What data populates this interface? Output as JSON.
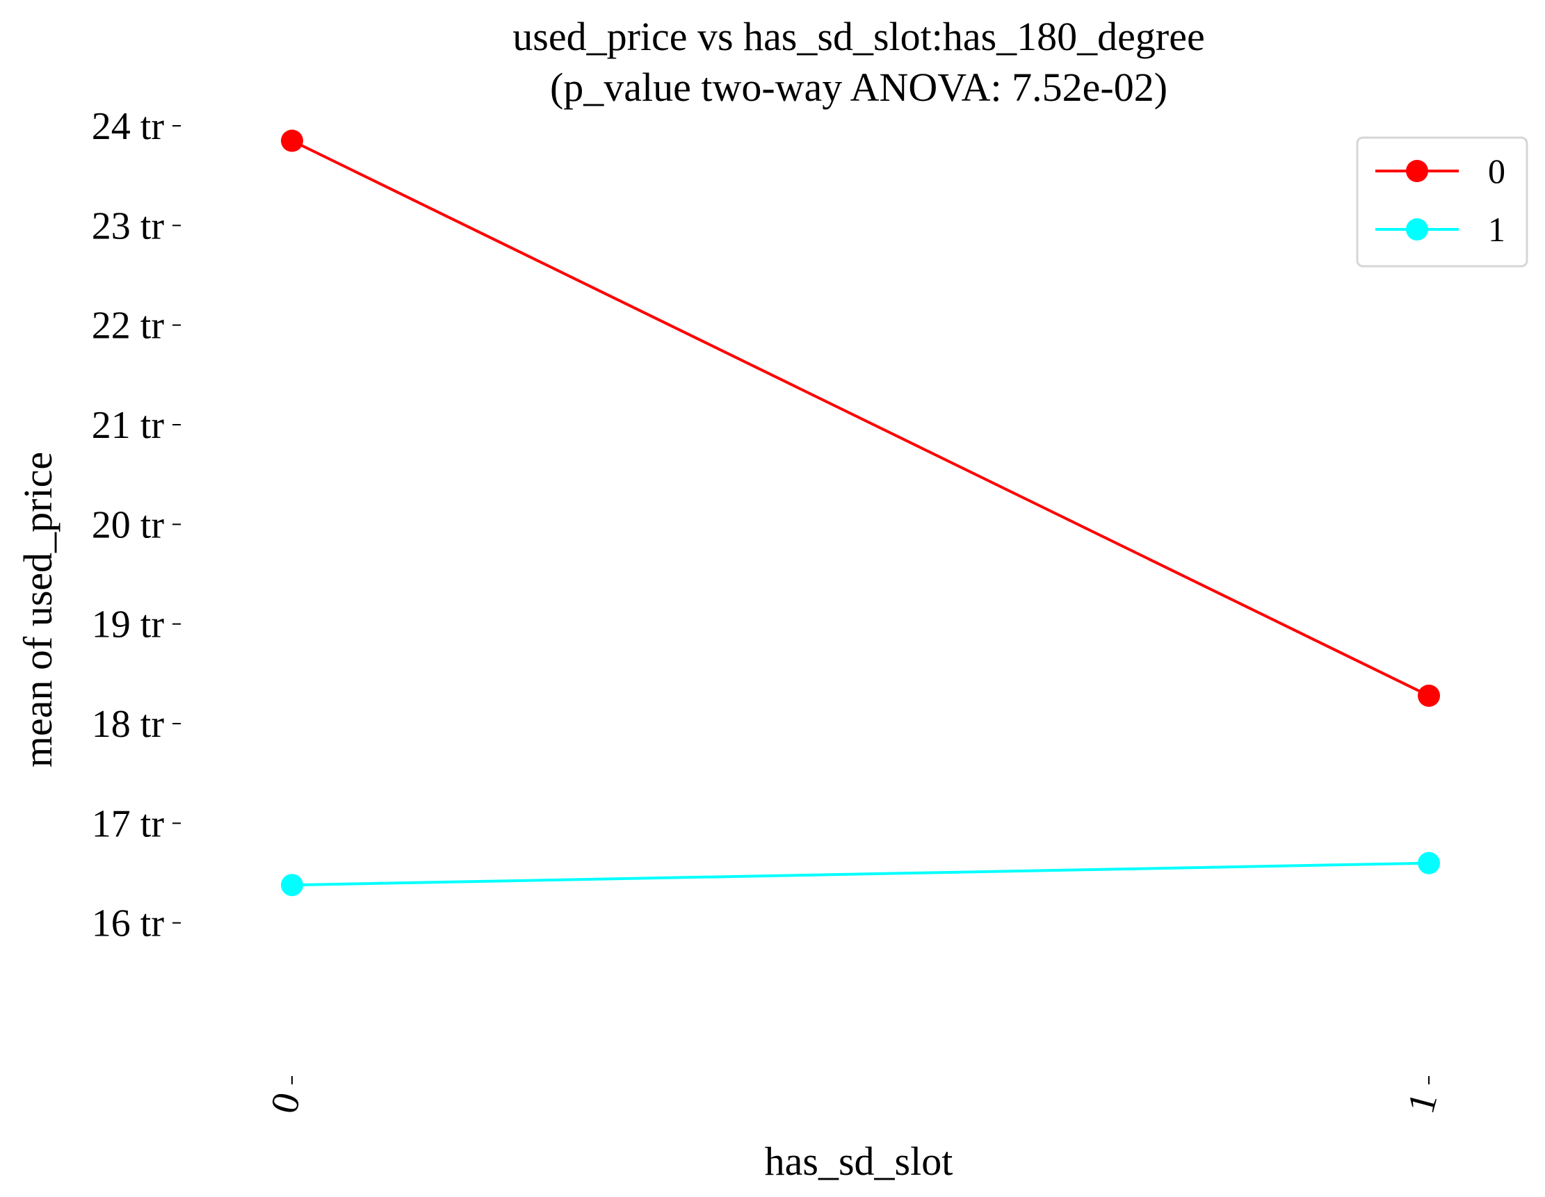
{
  "chart_data": {
    "type": "line",
    "title": "used_price vs has_sd_slot:has_180_degree",
    "subtitle": "(p_value two-way ANOVA: 7.52e-02)",
    "xlabel": "has_sd_slot",
    "ylabel": "mean of used_price",
    "categories": [
      "0",
      "1"
    ],
    "y_ticks": [
      16,
      17,
      18,
      19,
      20,
      21,
      22,
      23,
      24
    ],
    "y_tick_labels": [
      "16 tr",
      "17 tr",
      "18 tr",
      "19 tr",
      "20 tr",
      "21 tr",
      "22 tr",
      "23 tr",
      "24 tr"
    ],
    "ylim": [
      15.6,
      24.3
    ],
    "grid": false,
    "legend_position": "top-right",
    "series": [
      {
        "name": "0",
        "color": "#ff0000",
        "values": [
          23.85,
          18.28
        ]
      },
      {
        "name": "1",
        "color": "#00ffff",
        "values": [
          16.38,
          16.6
        ]
      }
    ]
  }
}
